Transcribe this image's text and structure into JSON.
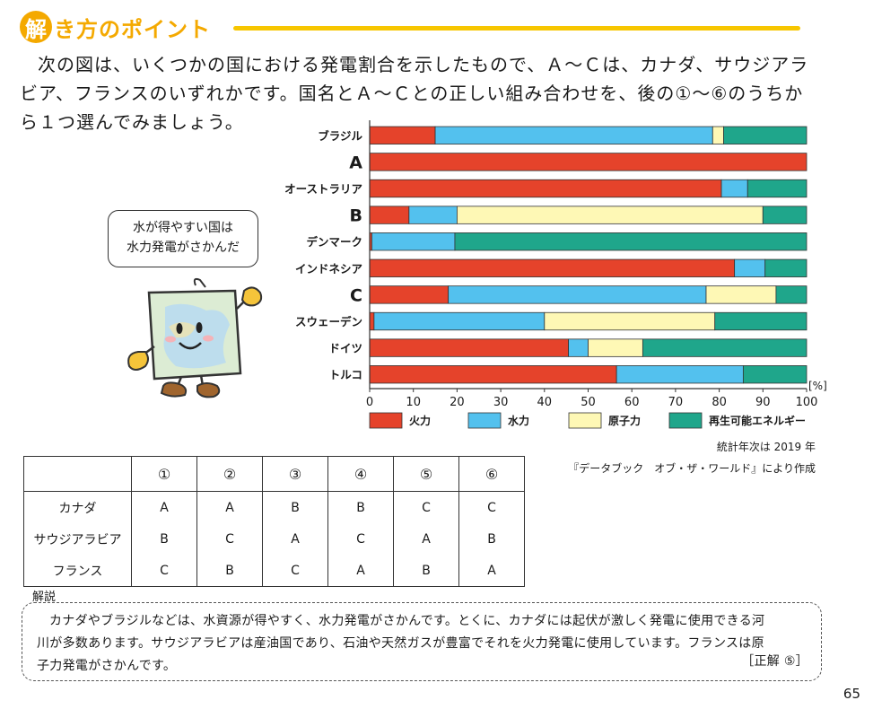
{
  "header": {
    "badge": "解",
    "title": "き方のポイント"
  },
  "question": {
    "line1": "次の図は、いくつかの国における発電割合を示したもので、Ａ～Ｃは、カナダ、サウジアラ",
    "line2": "ビア、フランスのいずれかです。国名とＡ～Ｃとの正しい組み合わせを、後の①～⑥のうちか",
    "line3": "ら１つ選んでみましょう。"
  },
  "bubble": {
    "line1": "水が得やすい国は",
    "line2": "水力発電がさかんだ"
  },
  "chart_data": {
    "type": "bar",
    "orientation": "horizontal",
    "stacked": true,
    "categories": [
      "ブラジル",
      "A",
      "オーストラリア",
      "B",
      "デンマーク",
      "インドネシア",
      "C",
      "スウェーデン",
      "ドイツ",
      "トルコ"
    ],
    "emphasized_categories": [
      "A",
      "B",
      "C"
    ],
    "series": [
      {
        "name": "火力",
        "color": "#e5432b",
        "values": [
          15,
          100,
          80.5,
          9,
          0.5,
          83.5,
          18,
          1,
          45.5,
          56.5
        ]
      },
      {
        "name": "水力",
        "color": "#53c1ee",
        "values": [
          63.5,
          0,
          6,
          11,
          19,
          7,
          59,
          39,
          4.5,
          29
        ]
      },
      {
        "name": "原子力",
        "color": "#fef8b5",
        "values": [
          2.5,
          0,
          0,
          70,
          0,
          0,
          16,
          39,
          12.5,
          0
        ]
      },
      {
        "name": "再生可能エネルギー",
        "color": "#1fa68b",
        "values": [
          19,
          0,
          13.5,
          10,
          80.5,
          9.5,
          7,
          21,
          37.5,
          14.5
        ]
      }
    ],
    "xlim": [
      0,
      100
    ],
    "xticks": [
      0,
      10,
      20,
      30,
      40,
      50,
      60,
      70,
      80,
      90,
      100
    ],
    "unit": "[%]",
    "legend_position": "bottom"
  },
  "source": {
    "line1": "統計年次は 2019 年",
    "line2": "『データブック　オブ・ザ・ワールド』により作成"
  },
  "table": {
    "headers": [
      "",
      "①",
      "②",
      "③",
      "④",
      "⑤",
      "⑥"
    ],
    "rows": [
      [
        "カナダ",
        "A",
        "A",
        "B",
        "B",
        "C",
        "C"
      ],
      [
        "サウジアラビア",
        "B",
        "C",
        "A",
        "C",
        "A",
        "B"
      ],
      [
        "フランス",
        "C",
        "B",
        "C",
        "A",
        "B",
        "A"
      ]
    ]
  },
  "explanation": {
    "label": "解説",
    "line1": "カナダやブラジルなどは、水資源が得やすく、水力発電がさかんです。とくに、カナダには起伏が激しく発電に使用できる河",
    "line2": "川が多数あります。サウジアラビアは産油国であり、石油や天然ガスが豊富でそれを火力発電に使用しています。フランスは原",
    "line3": "子力発電がさかんです。",
    "answer": "［正解 ⑤］"
  },
  "page_number": "65"
}
